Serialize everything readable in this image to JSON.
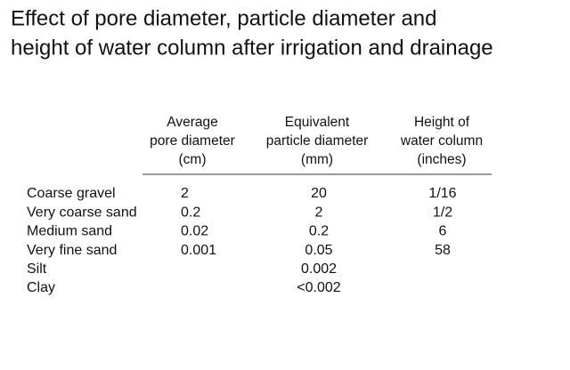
{
  "title": [
    "Effect of pore diameter, particle diameter and",
    "height of water column after irrigation and drainage"
  ],
  "table": {
    "headers": [
      [
        "Average",
        "pore diameter",
        "(cm)"
      ],
      [
        "Equivalent",
        "particle diameter",
        "(mm)"
      ],
      [
        "Height of",
        "water column",
        "(inches)"
      ]
    ],
    "rows": [
      {
        "soil": "Coarse gravel",
        "pore": "2",
        "particle": "20",
        "height": "1/16"
      },
      {
        "soil": "Very coarse sand",
        "pore": "0.2",
        "particle": "2",
        "height": "1/2"
      },
      {
        "soil": "Medium sand",
        "pore": "0.02",
        "particle": "0.2",
        "height": "6"
      },
      {
        "soil": "Very fine sand",
        "pore": "0.001",
        "particle": "0.05",
        "height": "58"
      },
      {
        "soil": "Silt",
        "particle": "0.002"
      },
      {
        "soil": "Clay",
        "particle": "<0.002"
      }
    ]
  }
}
